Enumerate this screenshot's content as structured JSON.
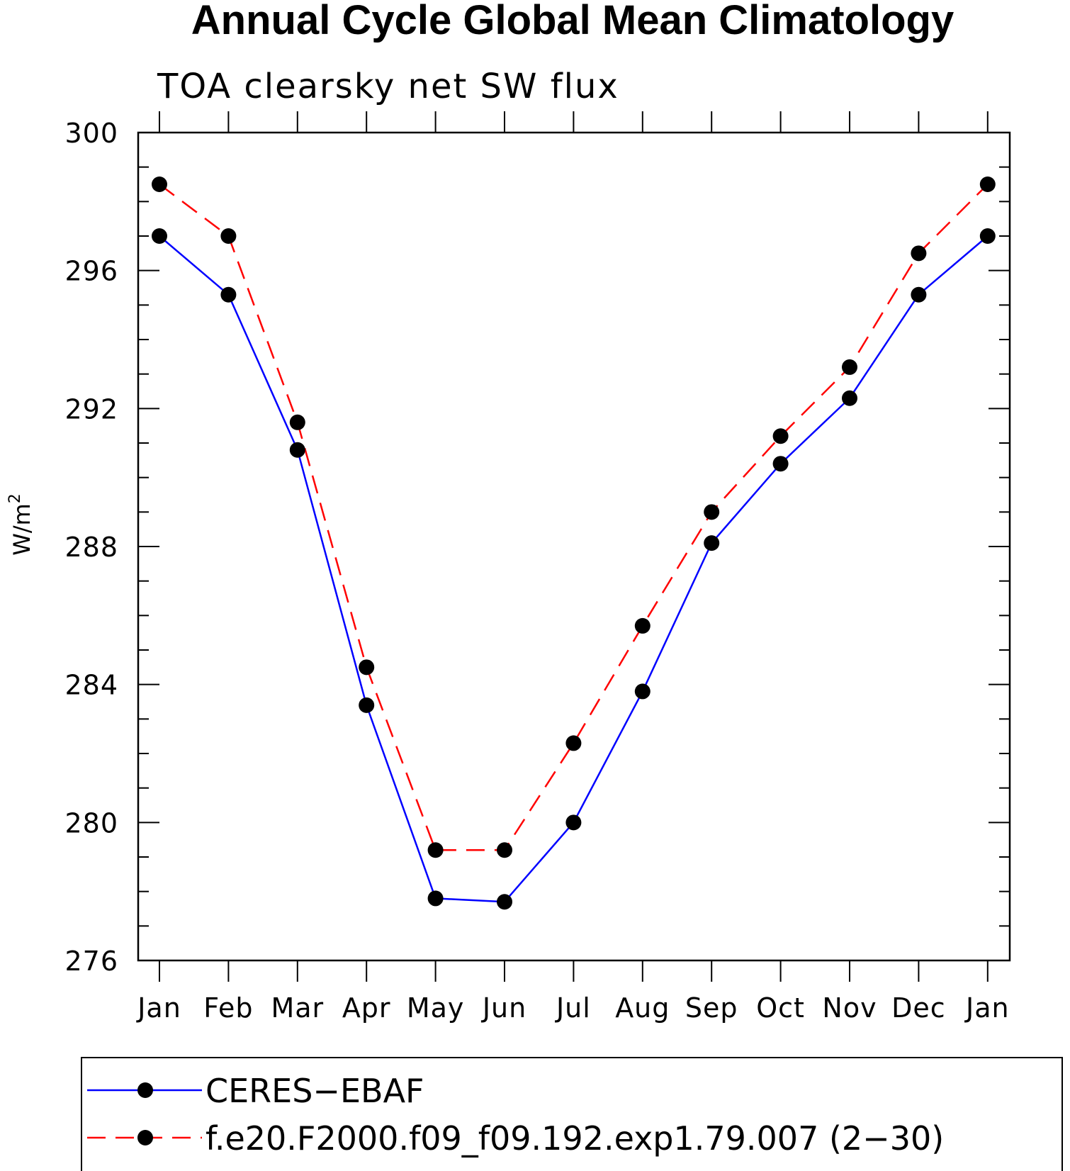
{
  "chart_data": {
    "type": "line",
    "title": "Annual Cycle Global Mean Climatology",
    "subtitle": "TOA clearsky net SW flux",
    "ylabel": "W/m",
    "ylabel_sup": "2",
    "xlabel": "",
    "categories": [
      "Jan",
      "Feb",
      "Mar",
      "Apr",
      "May",
      "Jun",
      "Jul",
      "Aug",
      "Sep",
      "Oct",
      "Nov",
      "Dec",
      "Jan"
    ],
    "ylim": [
      276,
      300
    ],
    "yticks": [
      276,
      280,
      284,
      288,
      292,
      296,
      300
    ],
    "series": [
      {
        "name": "CERES−EBAF",
        "color": "#0000ff",
        "dash": "solid",
        "marker": "filled-circle",
        "values": [
          297.0,
          295.3,
          290.8,
          283.4,
          277.8,
          277.7,
          280.0,
          283.8,
          288.1,
          290.4,
          292.3,
          295.3,
          297.0
        ]
      },
      {
        "name": "f.e20.F2000.f09_f09.192.exp1.79.007 (2−30)",
        "color": "#ff0000",
        "dash": "dashed",
        "marker": "filled-circle",
        "values": [
          298.5,
          297.0,
          291.6,
          284.5,
          279.2,
          279.2,
          282.3,
          285.7,
          289.0,
          291.2,
          293.2,
          296.5,
          298.5
        ]
      }
    ],
    "grid": false,
    "legend_position": "bottom"
  }
}
